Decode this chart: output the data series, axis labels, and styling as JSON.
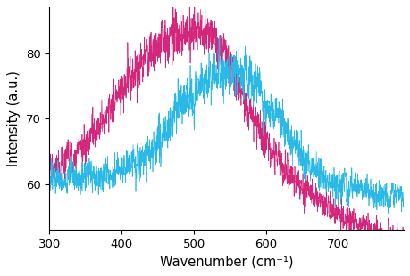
{
  "xlabel": "Wavenumber (cm⁻¹)",
  "ylabel": "Intensity (a.u.)",
  "xlim": [
    300,
    790
  ],
  "ylim": [
    53,
    87
  ],
  "xticks": [
    300,
    400,
    500,
    600,
    700
  ],
  "yticks": [
    60,
    70,
    80
  ],
  "color_magenta": "#D4267A",
  "color_cyan": "#2AB8E6",
  "figsize": [
    4.6,
    3.1
  ],
  "dpi": 100,
  "seed": 7
}
